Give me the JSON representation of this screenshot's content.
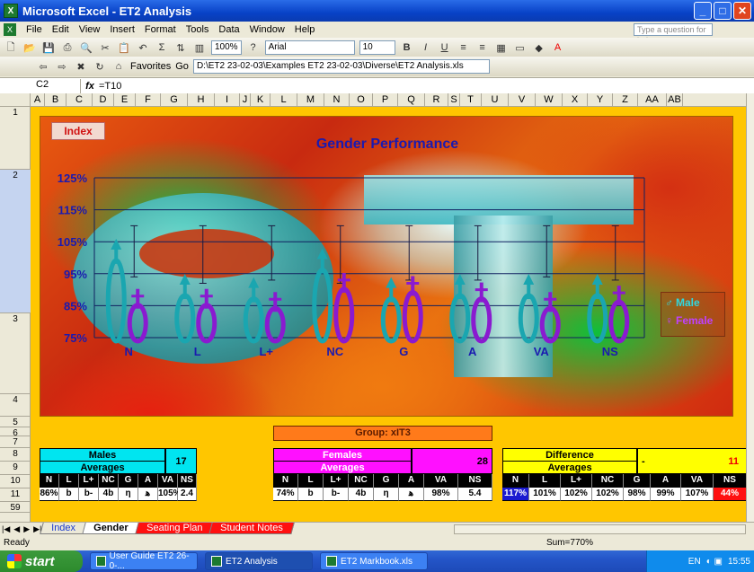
{
  "window": {
    "title": "Microsoft Excel - ET2 Analysis"
  },
  "menu": {
    "items": [
      "File",
      "Edit",
      "View",
      "Insert",
      "Format",
      "Tools",
      "Data",
      "Window",
      "Help"
    ],
    "help_placeholder": "Type a question for help"
  },
  "toolbar": {
    "zoom": "100%",
    "font": "Arial",
    "size": "10",
    "favorites": "Favorites",
    "go": "Go",
    "path": "D:\\ET2 23-02-03\\Examples ET2 23-02-03\\Diverse\\ET2 Analysis.xls"
  },
  "formula": {
    "cell": "C2",
    "fx": "fx",
    "value": "=T10"
  },
  "columns": [
    "A",
    "B",
    "C",
    "D",
    "E",
    "F",
    "G",
    "H",
    "I",
    "J",
    "K",
    "L",
    "M",
    "N",
    "O",
    "P",
    "Q",
    "R",
    "S",
    "T",
    "U",
    "V",
    "W",
    "X",
    "Y",
    "Z",
    "AA",
    "AB"
  ],
  "rows": [
    "1",
    "2",
    "3",
    "4",
    "5",
    "6",
    "7",
    "8",
    "9",
    "10",
    "11",
    "59"
  ],
  "chart": {
    "index_button": "Index",
    "title": "Gender Performance",
    "legend_male": "Male",
    "legend_female": "Female"
  },
  "chart_data": {
    "type": "line",
    "title": "Gender Performance",
    "categories": [
      "N",
      "L",
      "L+",
      "NC",
      "G",
      "A",
      "VA",
      "NS"
    ],
    "y_ticks": [
      "75%",
      "85%",
      "95%",
      "105%",
      "115%",
      "125%"
    ],
    "ylim": [
      75,
      125
    ],
    "series": [
      {
        "name": "Male",
        "values": [
          102,
          91,
          90,
          99,
          90,
          91,
          91,
          91
        ],
        "color": "#1aa6b0"
      },
      {
        "name": "Female",
        "values": [
          88,
          88,
          87,
          93,
          92,
          90,
          87,
          89
        ],
        "color": "#8a1ad0"
      }
    ],
    "error_high": [
      110,
      110,
      110,
      110,
      110,
      110,
      110,
      110
    ],
    "error_low": [
      94,
      92,
      93,
      92,
      93,
      93,
      94,
      93
    ],
    "legend": "right"
  },
  "group": {
    "label": "Group: xIT3"
  },
  "males": {
    "title": "Males",
    "subtitle": "Averages",
    "count": "17",
    "headers": [
      "N",
      "L",
      "L+",
      "NC",
      "G",
      "A",
      "VA",
      "NS"
    ],
    "values": [
      "86%",
      "b",
      "b-",
      "4b",
      "η",
      "ﻫ",
      "105%",
      "2.4"
    ]
  },
  "females": {
    "title": "Females",
    "subtitle": "Averages",
    "count": "28",
    "headers": [
      "N",
      "L",
      "L+",
      "NC",
      "G",
      "A",
      "VA",
      "NS"
    ],
    "values": [
      "74%",
      "b",
      "b-",
      "4b",
      "η",
      "ﻫ",
      "98%",
      "5.4"
    ]
  },
  "difference": {
    "title": "Difference",
    "subtitle": "Averages",
    "dash": "-",
    "count": "11",
    "headers": [
      "N",
      "L",
      "L+",
      "NC",
      "G",
      "A",
      "VA",
      "NS"
    ],
    "values": [
      "117%",
      "101%",
      "102%",
      "102%",
      "98%",
      "99%",
      "107%",
      "44%"
    ]
  },
  "tabs": [
    "Index",
    "Gender",
    "Seating Plan",
    "Student Notes"
  ],
  "status": {
    "ready": "Ready",
    "sum": "Sum=770%"
  },
  "taskbar": {
    "start": "start",
    "items": [
      "User Guide ET2 26-0-...",
      "ET2 Analysis",
      "ET2 Markbook.xls"
    ],
    "lang": "EN",
    "clock": "15:55"
  }
}
